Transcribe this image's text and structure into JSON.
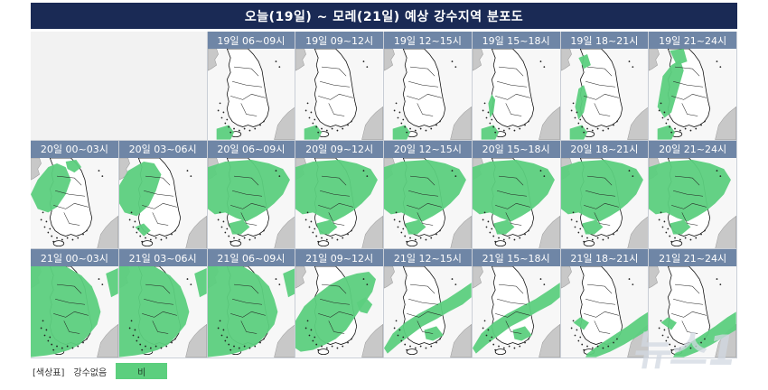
{
  "title": "오늘(19일) ~ 모레(21일) 예상 강수지역 분포도",
  "colors": {
    "header_bg": "#1a2a55",
    "label_bg": "#6f86a6",
    "rain": "#5ccf7e",
    "land": "#ffffff",
    "sea": "#f7f7f7",
    "foreign_land": "#c8c8c8"
  },
  "rows": [
    [
      {
        "label": "",
        "rain": 0
      },
      {
        "label": "19일 06~09시",
        "rain": 1
      },
      {
        "label": "19일 09~12시",
        "rain": 1
      },
      {
        "label": "19일 12~15시",
        "rain": 1
      },
      {
        "label": "19일 15~18시",
        "rain": 2
      },
      {
        "label": "19일 18~21시",
        "rain": 3
      },
      {
        "label": "19일 21~24시",
        "rain": 4
      }
    ],
    [
      {
        "label": "20일 00~03시",
        "rain": 5
      },
      {
        "label": "20일 03~06시",
        "rain": 6
      },
      {
        "label": "20일 06~09시",
        "rain": 7
      },
      {
        "label": "20일 09~12시",
        "rain": 7
      },
      {
        "label": "20일 12~15시",
        "rain": 7
      },
      {
        "label": "20일 15~18시",
        "rain": 7
      },
      {
        "label": "20일 18~21시",
        "rain": 7
      },
      {
        "label": "20일 21~24시",
        "rain": 7
      }
    ],
    [
      {
        "label": "21일 00~03시",
        "rain": 8
      },
      {
        "label": "21일 03~06시",
        "rain": 8
      },
      {
        "label": "21일 06~09시",
        "rain": 8
      },
      {
        "label": "21일 09~12시",
        "rain": 9
      },
      {
        "label": "21일 12~15시",
        "rain": 10
      },
      {
        "label": "21일 15~18시",
        "rain": 10
      },
      {
        "label": "21일 18~21시",
        "rain": 11
      },
      {
        "label": "21일 21~24시",
        "rain": 11
      }
    ]
  ],
  "legend": {
    "title": "[색상표]",
    "none_label": "강수없음",
    "rain_label": "비"
  },
  "watermark": "뉴스1"
}
